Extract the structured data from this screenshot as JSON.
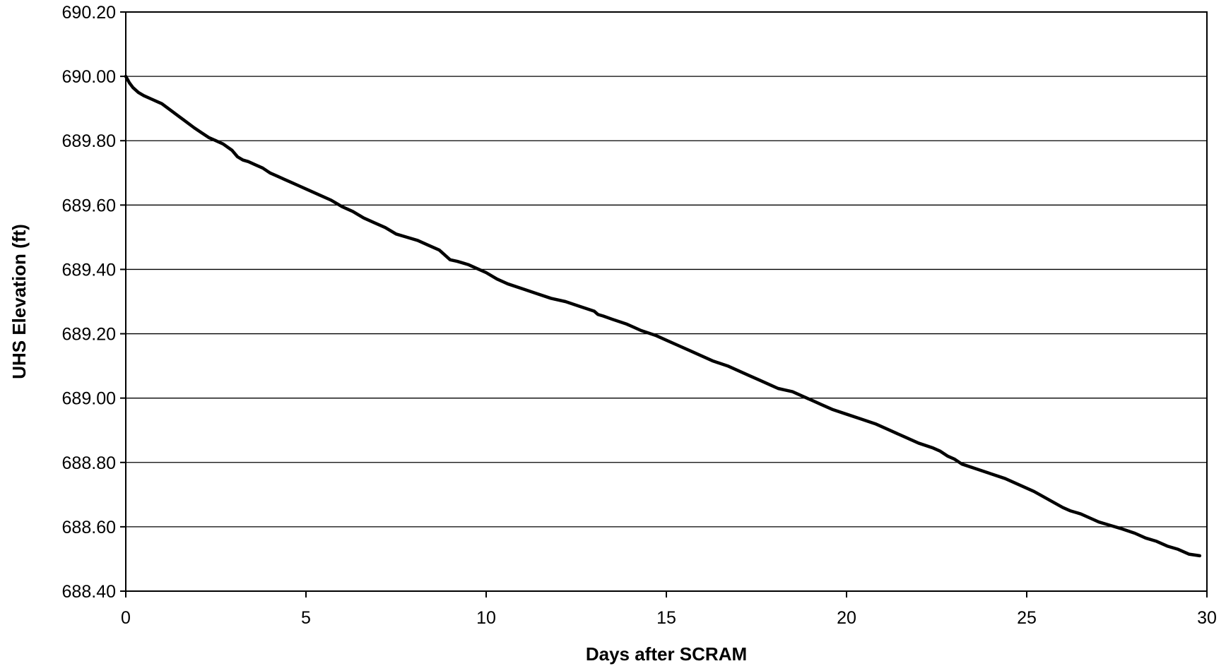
{
  "chart_data": {
    "type": "line",
    "title": "",
    "xlabel": "Days after SCRAM",
    "ylabel": "UHS Elevation (ft)",
    "xlim": [
      0,
      30
    ],
    "ylim": [
      688.4,
      690.2
    ],
    "x_ticks": [
      0,
      5,
      10,
      15,
      20,
      25,
      30
    ],
    "x_tick_labels": [
      "0",
      "5",
      "10",
      "15",
      "20",
      "25",
      "30"
    ],
    "y_ticks": [
      688.4,
      688.6,
      688.8,
      689.0,
      689.2,
      689.4,
      689.6,
      689.8,
      690.0,
      690.2
    ],
    "y_tick_labels": [
      "688.40",
      "688.60",
      "688.80",
      "689.00",
      "689.20",
      "689.40",
      "689.60",
      "689.80",
      "690.00",
      "690.20"
    ],
    "grid": "horizontal",
    "legend": "none",
    "line_color": "#000000",
    "series": [
      {
        "x": [
          0,
          0.1,
          0.2,
          0.35,
          0.5,
          0.7,
          0.9,
          1.0,
          1.3,
          1.6,
          1.9,
          2.1,
          2.3,
          2.5,
          2.7,
          2.95,
          3.1,
          3.25,
          3.4,
          3.6,
          3.8,
          4.0,
          4.2,
          4.4,
          4.6,
          4.8,
          5.0,
          5.4,
          5.7,
          6.0,
          6.3,
          6.6,
          6.9,
          7.2,
          7.5,
          7.8,
          8.1,
          8.4,
          8.7,
          9.0,
          9.2,
          9.35,
          9.5,
          9.7,
          10.0,
          10.3,
          10.6,
          11.0,
          11.4,
          11.8,
          12.2,
          12.6,
          13.0,
          13.1,
          13.25,
          13.5,
          13.9,
          14.3,
          14.7,
          15.0,
          15.3,
          15.7,
          16.0,
          16.3,
          16.7,
          17.0,
          17.3,
          17.6,
          17.9,
          18.1,
          18.3,
          18.5,
          18.8,
          19.1,
          19.3,
          19.6,
          20.0,
          20.4,
          20.8,
          21.2,
          21.6,
          22.0,
          22.4,
          22.6,
          22.8,
          23.0,
          23.2,
          23.6,
          24.0,
          24.4,
          24.8,
          25.2,
          25.6,
          26.0,
          26.2,
          26.5,
          26.8,
          27.0,
          27.3,
          27.6,
          28.0,
          28.3,
          28.6,
          28.9,
          29.2,
          29.5,
          29.8
        ],
        "y": [
          690.0,
          689.98,
          689.965,
          689.95,
          689.94,
          689.93,
          689.92,
          689.915,
          689.89,
          689.865,
          689.84,
          689.825,
          689.81,
          689.8,
          689.79,
          689.77,
          689.75,
          689.74,
          689.735,
          689.725,
          689.715,
          689.7,
          689.69,
          689.68,
          689.67,
          689.66,
          689.65,
          689.63,
          689.615,
          689.595,
          689.58,
          689.56,
          689.545,
          689.53,
          689.51,
          689.5,
          689.49,
          689.475,
          689.46,
          689.43,
          689.425,
          689.42,
          689.415,
          689.405,
          689.39,
          689.37,
          689.355,
          689.34,
          689.325,
          689.31,
          689.3,
          689.285,
          689.27,
          689.26,
          689.255,
          689.245,
          689.23,
          689.21,
          689.195,
          689.18,
          689.165,
          689.145,
          689.13,
          689.115,
          689.1,
          689.085,
          689.07,
          689.055,
          689.04,
          689.03,
          689.025,
          689.02,
          689.005,
          688.99,
          688.98,
          688.965,
          688.95,
          688.935,
          688.92,
          688.9,
          688.88,
          688.86,
          688.845,
          688.835,
          688.82,
          688.81,
          688.795,
          688.78,
          688.765,
          688.75,
          688.73,
          688.71,
          688.685,
          688.66,
          688.65,
          688.64,
          688.625,
          688.615,
          688.605,
          688.595,
          688.58,
          688.565,
          688.555,
          688.54,
          688.53,
          688.515,
          688.51
        ]
      }
    ]
  }
}
